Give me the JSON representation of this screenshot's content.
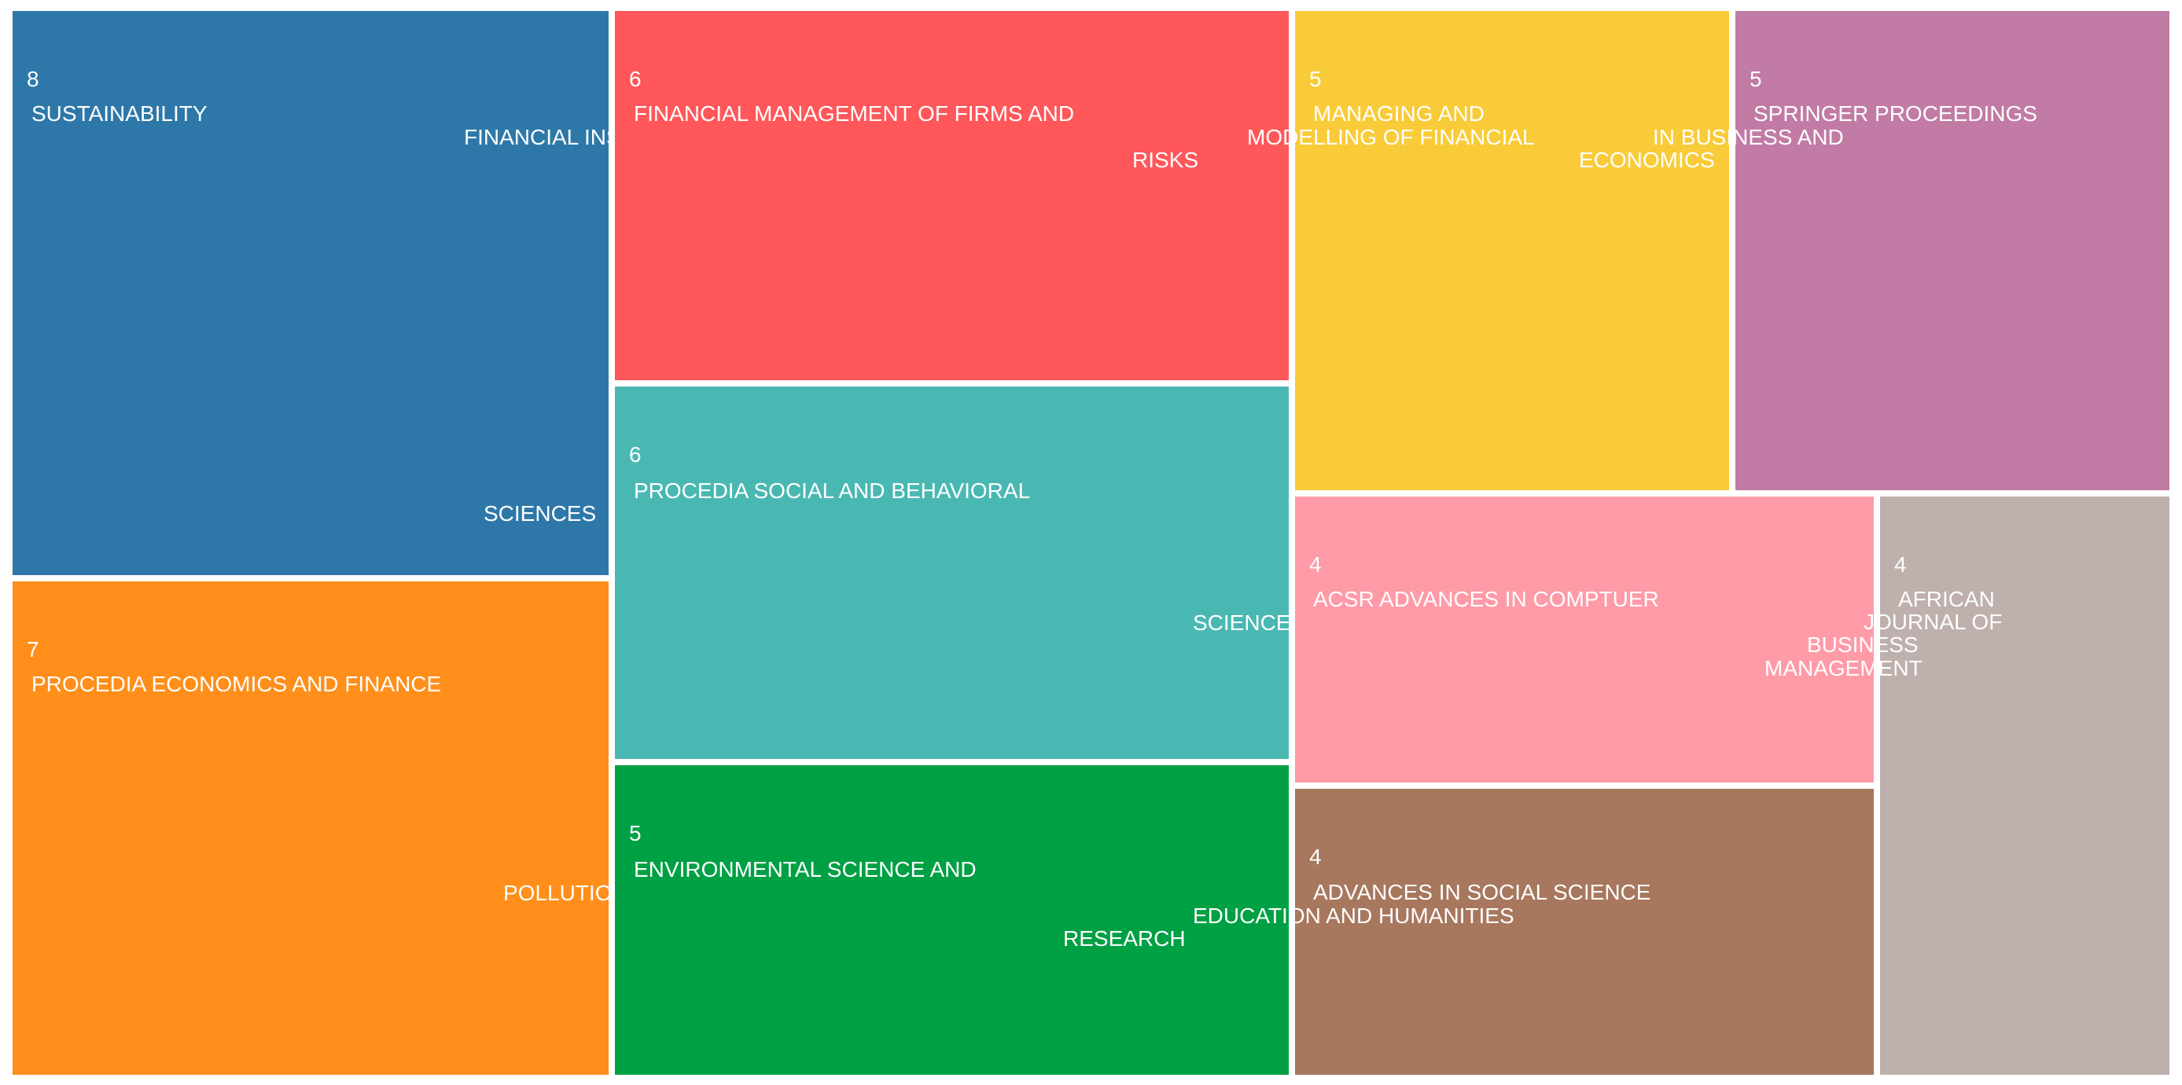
{
  "chart_data": {
    "type": "treemap",
    "items": [
      {
        "value": 8,
        "label_lines": [
          "SUSTAINABILITY",
          "FINANCIAL INSTITUTIONS OSTRAVA",
          "SCIENCES"
        ],
        "color": "#2E78A9"
      },
      {
        "value": 7,
        "label_lines": [
          "PROCEDIA ECONOMICS AND FINANCE",
          "POLLUTION RESEARCH"
        ],
        "color": "#FF8F1A"
      },
      {
        "value": 6,
        "label_lines": [
          "FINANCIAL MANAGEMENT OF FIRMS AND",
          "RISKS"
        ],
        "color": "#FF575A"
      },
      {
        "value": 6,
        "label_lines": [
          "PROCEDIA SOCIAL AND BEHAVIORAL",
          "SCIENCE RESEARCH"
        ],
        "color": "#4AB8B2"
      },
      {
        "value": 5,
        "label_lines": [
          "ENVIRONMENTAL SCIENCE AND",
          "RESEARCH"
        ],
        "color": "#00A044"
      },
      {
        "value": 5,
        "label_lines": [
          "MANAGING AND",
          "MODELLING OF FINANCIAL"
        ],
        "color": "#F9CB38"
      },
      {
        "value": 5,
        "label_lines": [
          "SPRINGER PROCEEDINGS",
          "IN BUSINESS AND",
          "ECONOMICS"
        ],
        "color": "#C17BA4"
      },
      {
        "value": 4,
        "label_lines": [
          "ACSR ADVANCES IN COMPTUER"
        ],
        "color": "#FF9AA7"
      },
      {
        "value": 4,
        "label_lines": [
          "ADVANCES IN SOCIAL SCIENCE",
          "EDUCATION AND HUMANITIES"
        ],
        "color": "#A7775E"
      },
      {
        "value": 4,
        "label_lines": [
          "AFRICAN",
          "JOURNAL OF",
          "BUSINESS",
          "MANAGEMENT"
        ],
        "color": "#BEB0AC"
      }
    ]
  }
}
